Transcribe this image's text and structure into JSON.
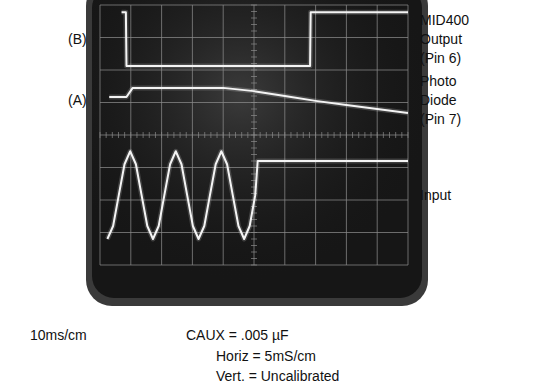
{
  "chart_data": {
    "type": "line",
    "xlim": [
      0,
      50
    ],
    "ylim": [
      0,
      8
    ],
    "xticks": [
      0,
      5,
      10,
      15,
      20,
      25,
      30,
      35,
      40,
      45,
      50
    ],
    "yticks": [
      0,
      1,
      2,
      3,
      4,
      5,
      6,
      7,
      8
    ],
    "grid": true,
    "tick_labels": false,
    "series": [
      {
        "name": "MID400 Output (Pin 6)",
        "label": "(B)",
        "color": "#f4f4f4",
        "x": [
          3.5,
          4.2,
          4.3,
          34.1,
          34.2,
          50
        ],
        "values": [
          7.78,
          7.78,
          6.12,
          6.12,
          7.78,
          7.78
        ]
      },
      {
        "name": "Photo Diode (Pin 7)",
        "label": "(A)",
        "color": "#f4f4f4",
        "x": [
          1.5,
          4.3,
          5.3,
          20,
          25,
          30,
          35,
          40,
          45,
          50
        ],
        "values": [
          5.17,
          5.17,
          5.45,
          5.45,
          5.35,
          5.2,
          5.05,
          4.92,
          4.8,
          4.68
        ]
      },
      {
        "name": "Input",
        "color": "#f4f4f4",
        "x": [
          1.2,
          2.13,
          3.05,
          3.98,
          4.9,
          5.83,
          6.75,
          7.68,
          8.6,
          9.53,
          10.45,
          11.38,
          12.3,
          13.23,
          14.15,
          15.08,
          16.0,
          16.93,
          17.85,
          18.78,
          19.7,
          20.63,
          21.55,
          22.48,
          23.4,
          24.3,
          25.2,
          25.6,
          50
        ],
        "values": [
          0.8,
          1.2,
          2.15,
          3.1,
          3.5,
          3.1,
          2.15,
          1.2,
          0.8,
          1.2,
          2.15,
          3.1,
          3.5,
          3.1,
          2.15,
          1.2,
          0.8,
          1.2,
          2.15,
          3.1,
          3.5,
          3.1,
          2.15,
          1.2,
          0.8,
          1.2,
          2.15,
          3.2,
          3.2
        ]
      }
    ],
    "annotations": [
      "10ms/cm",
      "CAUX = .005 µF",
      "Horiz = 5mS/cm",
      "Vert. = Uncalibrated"
    ]
  }
}
